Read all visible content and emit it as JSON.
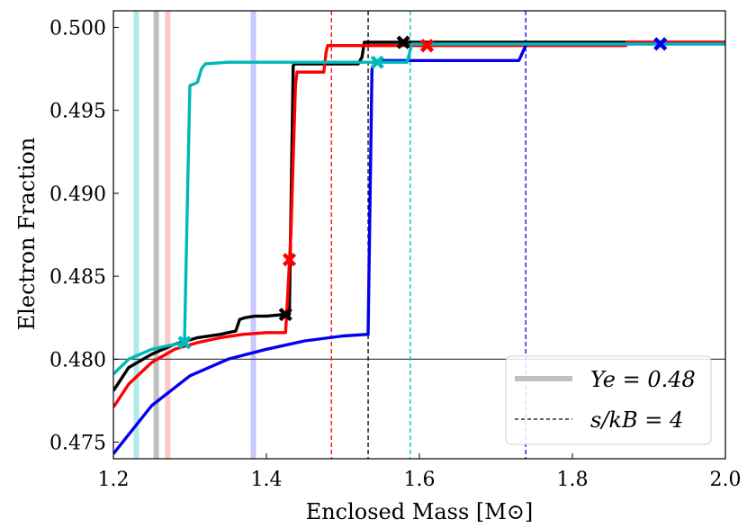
{
  "chart_data": {
    "type": "line",
    "title": "",
    "xlabel": "Enclosed Mass [M⊙]",
    "ylabel": "Electron Fraction",
    "xlim": [
      1.2,
      2.0
    ],
    "ylim": [
      0.474,
      0.501
    ],
    "xticks": [
      1.2,
      1.4,
      1.6,
      1.8,
      2.0
    ],
    "xtick_labels": [
      "1.2",
      "1.4",
      "1.6",
      "1.8",
      "2.0"
    ],
    "yticks": [
      0.475,
      0.48,
      0.485,
      0.49,
      0.495,
      0.5
    ],
    "ytick_labels": [
      "0.475",
      "0.480",
      "0.485",
      "0.490",
      "0.495",
      "0.500"
    ],
    "grid": false,
    "legend": {
      "position": "bottom-right",
      "entries": [
        {
          "label": "Ye = 0.48",
          "style": "thick-gray-solid"
        },
        {
          "label": "s/kB = 4",
          "style": "thin-dashed-black"
        }
      ]
    },
    "reference_line": {
      "y": 0.48,
      "color": "#333333"
    },
    "series": [
      {
        "name": "black",
        "color": "#000000",
        "x": [
          1.2,
          1.22,
          1.25,
          1.28,
          1.31,
          1.34,
          1.36,
          1.365,
          1.372,
          1.385,
          1.4,
          1.425,
          1.43,
          1.435,
          1.437,
          1.46,
          1.49,
          1.52,
          1.525,
          1.528,
          1.58,
          1.65,
          1.75,
          1.87,
          1.95,
          2.0
        ],
        "y": [
          0.4781,
          0.4795,
          0.4803,
          0.4809,
          0.4813,
          0.4815,
          0.4817,
          0.4824,
          0.4825,
          0.4826,
          0.4826,
          0.4827,
          0.4827,
          0.4977,
          0.4978,
          0.4978,
          0.4978,
          0.4978,
          0.4982,
          0.4991,
          0.4991,
          0.4991,
          0.4991,
          0.4991,
          0.4991,
          0.4991
        ]
      },
      {
        "name": "red",
        "color": "#ff0000",
        "x": [
          1.2,
          1.22,
          1.25,
          1.28,
          1.31,
          1.34,
          1.37,
          1.4,
          1.425,
          1.428,
          1.432,
          1.436,
          1.438,
          1.44,
          1.475,
          1.478,
          1.48,
          1.55,
          1.65,
          1.75,
          1.87,
          1.871,
          1.95,
          2.0
        ],
        "y": [
          0.4771,
          0.4785,
          0.4798,
          0.4806,
          0.481,
          0.4813,
          0.4815,
          0.4816,
          0.4816,
          0.484,
          0.4875,
          0.4935,
          0.4965,
          0.4973,
          0.4973,
          0.4985,
          0.4989,
          0.4989,
          0.4989,
          0.4989,
          0.4989,
          0.4991,
          0.4991,
          0.4991
        ]
      },
      {
        "name": "blue",
        "color": "#0000ee",
        "x": [
          1.2,
          1.25,
          1.3,
          1.35,
          1.4,
          1.45,
          1.5,
          1.533,
          1.538,
          1.545,
          1.6,
          1.7,
          1.73,
          1.74,
          1.8,
          1.87,
          1.95,
          2.0
        ],
        "y": [
          0.4743,
          0.4772,
          0.479,
          0.48,
          0.4806,
          0.4811,
          0.4814,
          0.4815,
          0.4975,
          0.498,
          0.498,
          0.498,
          0.498,
          0.499,
          0.499,
          0.499,
          0.499,
          0.499
        ]
      },
      {
        "name": "cyan",
        "color": "#00b8b8",
        "x": [
          1.2,
          1.22,
          1.25,
          1.27,
          1.293,
          1.297,
          1.3,
          1.306,
          1.31,
          1.315,
          1.32,
          1.35,
          1.4,
          1.5,
          1.55,
          1.584,
          1.59,
          1.65,
          1.75,
          1.87,
          1.95,
          2.0
        ],
        "y": [
          0.4791,
          0.48,
          0.4806,
          0.4808,
          0.481,
          0.49,
          0.4965,
          0.4966,
          0.4967,
          0.4975,
          0.4978,
          0.4979,
          0.4979,
          0.4979,
          0.4979,
          0.4979,
          0.499,
          0.499,
          0.499,
          0.499,
          0.499,
          0.499
        ]
      }
    ],
    "markers": [
      {
        "series": "black",
        "x": 1.425,
        "y": 0.4827
      },
      {
        "series": "black",
        "x": 1.579,
        "y": 0.4991
      },
      {
        "series": "red",
        "x": 1.43,
        "y": 0.486
      },
      {
        "series": "red",
        "x": 1.61,
        "y": 0.4989
      },
      {
        "series": "blue",
        "x": 1.915,
        "y": 0.499
      },
      {
        "series": "cyan",
        "x": 1.293,
        "y": 0.481
      },
      {
        "series": "cyan",
        "x": 1.545,
        "y": 0.4979
      }
    ],
    "ye_bands": [
      {
        "series": "cyan",
        "x": 1.23,
        "color": "#b0eaea"
      },
      {
        "series": "black",
        "x": 1.256,
        "color": "#c0c0c0"
      },
      {
        "series": "red",
        "x": 1.271,
        "color": "#ffc8c8"
      },
      {
        "series": "blue",
        "x": 1.383,
        "color": "#c8c8ff"
      }
    ],
    "entropy_lines": [
      {
        "series": "red",
        "x": 1.485,
        "color": "#ff0000"
      },
      {
        "series": "black",
        "x": 1.533,
        "color": "#000000"
      },
      {
        "series": "cyan",
        "x": 1.588,
        "color": "#00b8b8"
      },
      {
        "series": "blue",
        "x": 1.739,
        "color": "#0000ee"
      }
    ]
  }
}
